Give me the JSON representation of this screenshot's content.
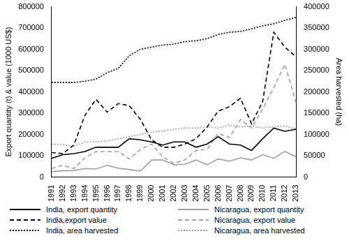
{
  "chart_data": {
    "type": "line",
    "categories": [
      "1991",
      "1992",
      "1993",
      "1994",
      "1995",
      "1996",
      "1997",
      "1998",
      "1999",
      "2000",
      "2001",
      "2002",
      "2003",
      "2004",
      "2005",
      "2006",
      "2007",
      "2008",
      "2009",
      "2010",
      "2011",
      "2012",
      "2013"
    ],
    "ylabel": "Export quantity (t) & value (1000 US$)",
    "y2label": "Area harvested (ha)",
    "ylim": [
      0,
      800000
    ],
    "yticks": [
      0,
      100000,
      200000,
      300000,
      400000,
      500000,
      600000,
      700000,
      800000
    ],
    "y2lim": [
      0,
      400000
    ],
    "y2ticks": [
      0,
      50000,
      100000,
      150000,
      200000,
      250000,
      300000,
      350000,
      400000
    ],
    "grid": false,
    "legend": "bottom",
    "series": [
      {
        "name": "India, export quantity",
        "color": "#000000",
        "line_style": "solid",
        "marker": "none",
        "axis": "y",
        "values": [
          88000,
          105000,
          110000,
          120000,
          140000,
          140000,
          140000,
          180000,
          175000,
          165000,
          150000,
          165000,
          165000,
          140000,
          155000,
          190000,
          155000,
          150000,
          125000,
          180000,
          230000,
          215000,
          225000
        ]
      },
      {
        "name": "Nicaragua, export quantity",
        "color": "#a0a0a0",
        "line_style": "solid",
        "marker": "none",
        "axis": "y",
        "values": [
          25000,
          30000,
          30000,
          40000,
          38000,
          55000,
          42000,
          35000,
          28000,
          80000,
          80000,
          58000,
          60000,
          80000,
          58000,
          85000,
          75000,
          90000,
          80000,
          105000,
          88000,
          120000,
          95000
        ]
      },
      {
        "name": "India,export value",
        "color": "#000000",
        "line_style": "dashed",
        "marker": "none",
        "axis": "y",
        "values": [
          115000,
          110000,
          150000,
          290000,
          365000,
          305000,
          345000,
          335000,
          270000,
          175000,
          140000,
          140000,
          155000,
          180000,
          235000,
          310000,
          330000,
          370000,
          250000,
          355000,
          680000,
          610000,
          565000
        ]
      },
      {
        "name": "Nicaragua, export value",
        "color": "#a0a0a0",
        "line_style": "dashed",
        "marker": "none",
        "axis": "y",
        "values": [
          40000,
          55000,
          40000,
          90000,
          120000,
          120000,
          120000,
          85000,
          130000,
          155000,
          95000,
          65000,
          80000,
          125000,
          130000,
          205000,
          185000,
          270000,
          230000,
          320000,
          420000,
          530000,
          350000
        ]
      },
      {
        "name": "India, area harvested",
        "color": "#000000",
        "line_style": "dotted",
        "marker": "none",
        "axis": "y2",
        "values": [
          222000,
          222000,
          222000,
          225000,
          230000,
          245000,
          255000,
          285000,
          300000,
          305000,
          310000,
          312000,
          318000,
          320000,
          325000,
          335000,
          340000,
          342000,
          348000,
          355000,
          360000,
          368000,
          375000
        ]
      },
      {
        "name": "Nicaragua, area harvested",
        "color": "#a0a0a0",
        "line_style": "dotted",
        "marker": "none",
        "axis": "y2",
        "values": [
          77000,
          76000,
          72000,
          82000,
          83000,
          85000,
          90000,
          95000,
          100000,
          105000,
          108000,
          112000,
          115000,
          115000,
          118000,
          115000,
          122000,
          118000,
          120000,
          115000,
          118000,
          120000,
          112000
        ]
      }
    ]
  }
}
